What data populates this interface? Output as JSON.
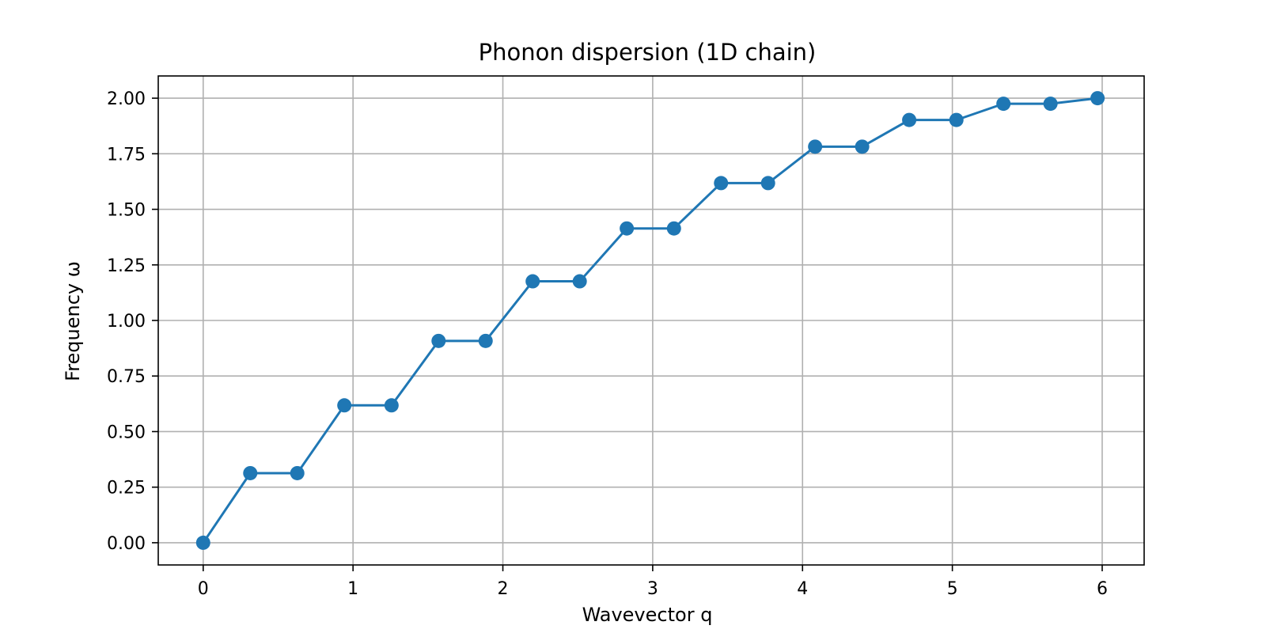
{
  "chart_data": {
    "type": "line",
    "title": "Phonon dispersion (1D chain)",
    "xlabel": "Wavevector q",
    "ylabel": "Frequency ω",
    "xlim": [
      -0.3,
      6.28
    ],
    "ylim": [
      -0.1,
      2.1
    ],
    "xticks": [
      0,
      1,
      2,
      3,
      4,
      5,
      6
    ],
    "xtick_labels": [
      "0",
      "1",
      "2",
      "3",
      "4",
      "5",
      "6"
    ],
    "yticks": [
      0,
      0.25,
      0.5,
      0.75,
      1.0,
      1.25,
      1.5,
      1.75,
      2.0
    ],
    "ytick_labels": [
      "0.00",
      "0.25",
      "0.50",
      "0.75",
      "1.00",
      "1.25",
      "1.50",
      "1.75",
      "2.00"
    ],
    "grid": true,
    "series": [
      {
        "color": "#1f77b4",
        "marker": "circle",
        "x": [
          0,
          0.314,
          0.628,
          0.942,
          1.257,
          1.571,
          1.885,
          2.199,
          2.513,
          2.827,
          3.142,
          3.456,
          3.77,
          4.084,
          4.398,
          4.712,
          5.027,
          5.341,
          5.655,
          5.969
        ],
        "y": [
          0.0,
          0.313,
          0.313,
          0.618,
          0.618,
          0.908,
          0.908,
          1.176,
          1.176,
          1.414,
          1.414,
          1.618,
          1.618,
          1.782,
          1.782,
          1.902,
          1.902,
          1.975,
          1.975,
          2.0
        ]
      }
    ]
  }
}
